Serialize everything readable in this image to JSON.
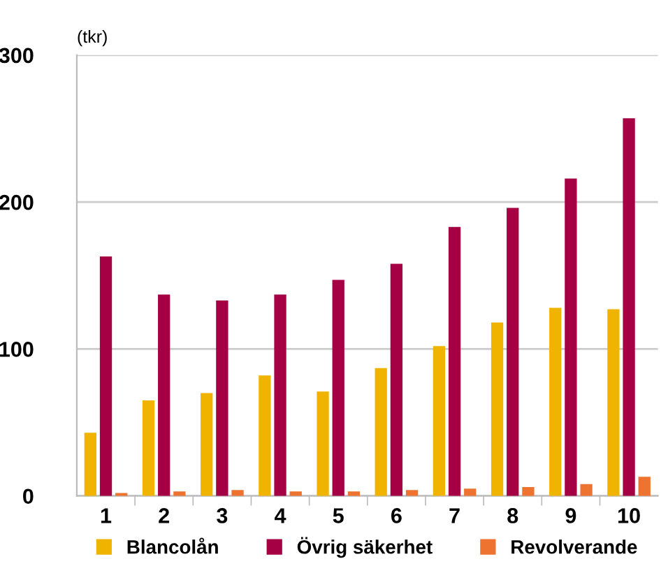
{
  "chart_data": {
    "type": "bar",
    "ylabel": "(tkr)",
    "categories": [
      "1",
      "2",
      "3",
      "4",
      "5",
      "6",
      "7",
      "8",
      "9",
      "10"
    ],
    "series": [
      {
        "name": "Blancolån",
        "color": "#f0b400",
        "values": [
          43,
          65,
          70,
          82,
          71,
          87,
          102,
          118,
          128,
          127
        ]
      },
      {
        "name": "Övrig säkerhet",
        "color": "#a50044",
        "values": [
          163,
          137,
          133,
          137,
          147,
          158,
          183,
          196,
          216,
          257
        ]
      },
      {
        "name": "Revolverande",
        "color": "#ee7330",
        "values": [
          2,
          3,
          4,
          3,
          3,
          4,
          5,
          6,
          8,
          13
        ]
      }
    ],
    "ylim": [
      0,
      300
    ],
    "yticks": [
      0,
      100,
      200,
      300
    ],
    "grid": "y",
    "legend": "bottom"
  }
}
